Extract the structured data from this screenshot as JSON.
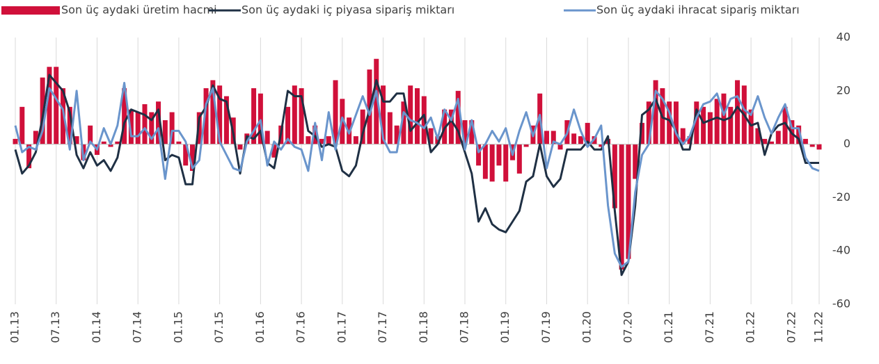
{
  "chart_data": {
    "type": "bar",
    "categories": [
      "01.13",
      null,
      null,
      null,
      null,
      null,
      "07.13",
      null,
      null,
      null,
      null,
      null,
      "01.14",
      null,
      null,
      null,
      null,
      null,
      "07.14",
      null,
      null,
      null,
      null,
      null,
      "01.15",
      null,
      null,
      null,
      null,
      null,
      "07.15",
      null,
      null,
      null,
      null,
      null,
      "01.16",
      null,
      null,
      null,
      null,
      null,
      "07.16",
      null,
      null,
      null,
      null,
      null,
      "01.17",
      null,
      null,
      null,
      null,
      null,
      "07.17",
      null,
      null,
      null,
      null,
      null,
      "01.18",
      null,
      null,
      null,
      null,
      null,
      "07.18",
      null,
      null,
      null,
      null,
      null,
      "01.19",
      null,
      null,
      null,
      null,
      null,
      "07.19",
      null,
      null,
      null,
      null,
      null,
      "01.20",
      null,
      null,
      null,
      null,
      null,
      "07.20",
      null,
      null,
      null,
      null,
      null,
      "01.21",
      null,
      null,
      null,
      null,
      null,
      "07.21",
      null,
      null,
      null,
      null,
      null,
      "01.22",
      null,
      null,
      null,
      null,
      null,
      "07.22",
      null,
      null,
      null,
      "11.22"
    ],
    "series": [
      {
        "name": "Son üç aydaki üretim hacmi",
        "type": "bar",
        "color": "#d0103a",
        "values": [
          2,
          14,
          -9,
          5,
          25,
          29,
          29,
          21,
          14,
          3,
          -6,
          7,
          -4,
          1,
          -1,
          1,
          21,
          13,
          12,
          15,
          12,
          16,
          9,
          12,
          1,
          -8,
          -10,
          12,
          21,
          24,
          22,
          18,
          10,
          -2,
          4,
          21,
          19,
          5,
          -5,
          7,
          14,
          22,
          21,
          3,
          7,
          2,
          3,
          24,
          17,
          10,
          3,
          13,
          28,
          32,
          22,
          12,
          7,
          16,
          22,
          21,
          18,
          6,
          3,
          13,
          13,
          20,
          9,
          9,
          -8,
          -13,
          -14,
          -8,
          -14,
          -6,
          -11,
          -1,
          7,
          19,
          5,
          5,
          -2,
          9,
          4,
          3,
          8,
          3,
          -1,
          2,
          -24,
          -47,
          -43,
          -13,
          8,
          16,
          24,
          21,
          16,
          16,
          6,
          3,
          16,
          14,
          12,
          17,
          19,
          14,
          24,
          22,
          13,
          6,
          2,
          1,
          5,
          14,
          9,
          7,
          2,
          -1,
          -2
        ]
      },
      {
        "name": "Son üç aydaki iç piyasa sipariş miktarı",
        "type": "line",
        "color": "#1f3044",
        "values": [
          -2,
          -11,
          -8,
          -3,
          10,
          26,
          23,
          20,
          12,
          -4,
          -9,
          -3,
          -8,
          -6,
          -10,
          -5,
          8,
          13,
          12,
          11,
          9,
          13,
          -6,
          -4,
          -5,
          -15,
          -15,
          10,
          14,
          22,
          17,
          16,
          4,
          -11,
          3,
          2,
          5,
          -7,
          -9,
          4,
          20,
          18,
          18,
          5,
          3,
          -1,
          0,
          -1,
          -10,
          -12,
          -8,
          4,
          13,
          24,
          16,
          16,
          19,
          19,
          5,
          8,
          11,
          -3,
          0,
          6,
          9,
          5,
          -3,
          -11,
          -29,
          -24,
          -30,
          -32,
          -33,
          -29,
          -25,
          -14,
          -12,
          0,
          -12,
          -16,
          -13,
          -2,
          -2,
          -2,
          1,
          -2,
          -2,
          3,
          -25,
          -49,
          -44,
          -23,
          11,
          13,
          17,
          10,
          9,
          5,
          -2,
          -2,
          13,
          8,
          9,
          10,
          9,
          10,
          14,
          11,
          7,
          8,
          -4,
          4,
          7,
          8,
          4,
          2,
          -7,
          -7,
          -7
        ]
      },
      {
        "name": "Son üç aydaki ihracat sipariş miktarı",
        "type": "line",
        "color": "#6a95cc",
        "values": [
          7,
          -3,
          -1,
          -2,
          5,
          21,
          17,
          13,
          -2,
          20,
          -6,
          1,
          -2,
          6,
          0,
          7,
          23,
          3,
          3,
          6,
          2,
          6,
          -13,
          5,
          5,
          1,
          -9,
          -6,
          15,
          21,
          1,
          -4,
          -9,
          -10,
          1,
          5,
          9,
          -8,
          1,
          -2,
          2,
          -1,
          -2,
          -10,
          8,
          -6,
          12,
          -2,
          10,
          4,
          11,
          18,
          11,
          20,
          2,
          -3,
          -3,
          12,
          9,
          8,
          6,
          10,
          2,
          13,
          9,
          17,
          -2,
          9,
          -3,
          0,
          5,
          1,
          6,
          -4,
          5,
          12,
          3,
          11,
          -9,
          1,
          0,
          4,
          13,
          5,
          -1,
          2,
          7,
          -23,
          -41,
          -46,
          -44,
          -18,
          -4,
          0,
          20,
          17,
          12,
          4,
          0,
          3,
          10,
          15,
          16,
          19,
          11,
          17,
          18,
          13,
          11,
          18,
          10,
          4,
          10,
          15,
          6,
          6,
          -5,
          -9,
          -10
        ]
      }
    ],
    "ylim": [
      -60,
      40
    ],
    "yticks": [
      -60,
      -40,
      -20,
      0,
      20,
      40
    ],
    "grid": "vertical",
    "legend": "top"
  }
}
